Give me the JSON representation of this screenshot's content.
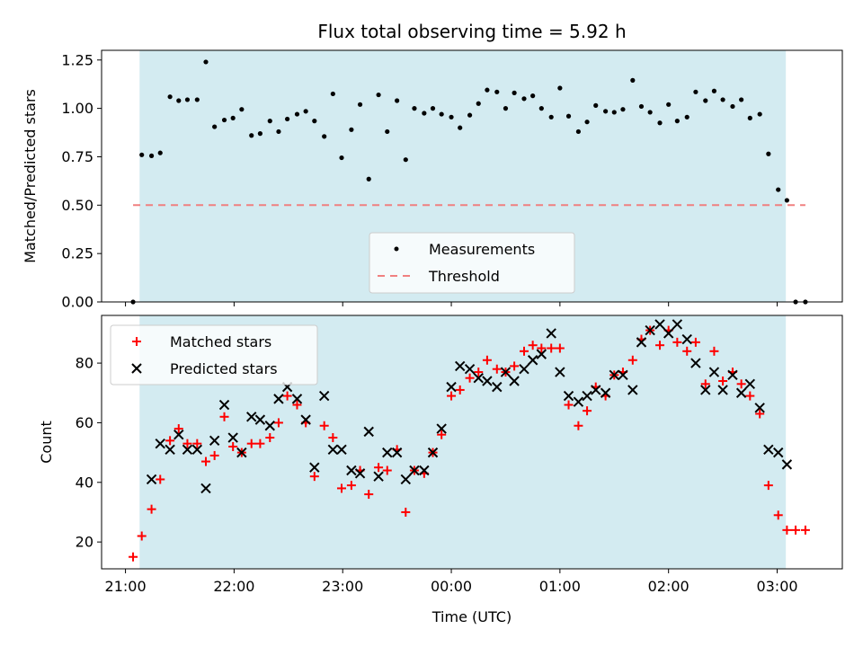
{
  "chart_data": [
    {
      "type": "scatter",
      "title": "Flux total observing time = 5.92 h",
      "ylabel": "Matched/Predicted stars",
      "xlabel": "",
      "ylim": [
        0,
        1.3
      ],
      "yticks": [
        "0.00",
        "0.25",
        "0.50",
        "0.75",
        "1.00",
        "1.25"
      ],
      "xlim": [
        20.78,
        27.6
      ],
      "observing_window": [
        21.13,
        27.08
      ],
      "legend_position": "lower-center",
      "threshold": {
        "name": "Threshold",
        "value": 0.5,
        "x_range": [
          21.07,
          27.26
        ],
        "color": "#f08080",
        "style": "dashed"
      },
      "series": [
        {
          "name": "Measurements",
          "color": "#000000",
          "x": [
            21.07,
            21.15,
            21.24,
            21.32,
            21.41,
            21.49,
            21.57,
            21.66,
            21.74,
            21.82,
            21.91,
            21.99,
            22.07,
            22.16,
            22.24,
            22.33,
            22.41,
            22.49,
            22.58,
            22.66,
            22.74,
            22.83,
            22.91,
            22.99,
            23.08,
            23.16,
            23.24,
            23.33,
            23.41,
            23.5,
            23.58,
            23.66,
            23.75,
            23.83,
            23.91,
            24.0,
            24.08,
            24.17,
            24.25,
            24.33,
            24.42,
            24.5,
            24.58,
            24.67,
            24.75,
            24.83,
            24.92,
            25.0,
            25.08,
            25.17,
            25.25,
            25.33,
            25.42,
            25.5,
            25.58,
            25.67,
            25.75,
            25.83,
            25.92,
            26.0,
            26.08,
            26.17,
            26.25,
            26.34,
            26.42,
            26.5,
            26.59,
            26.67,
            26.75,
            26.84,
            26.92,
            27.01,
            27.09,
            27.17,
            27.26
          ],
          "y": [
            0.0,
            0.76,
            0.755,
            0.77,
            1.06,
            1.04,
            1.045,
            1.045,
            1.24,
            0.905,
            0.94,
            0.95,
            0.995,
            0.86,
            0.87,
            0.935,
            0.88,
            0.945,
            0.97,
            0.985,
            0.935,
            0.855,
            1.075,
            0.745,
            0.89,
            1.02,
            0.635,
            1.07,
            0.88,
            1.04,
            0.735,
            1.0,
            0.975,
            1.0,
            0.97,
            0.955,
            0.9,
            0.965,
            1.025,
            1.095,
            1.085,
            1.0,
            1.08,
            1.05,
            1.065,
            1.0,
            0.955,
            1.105,
            0.96,
            0.88,
            0.93,
            1.015,
            0.985,
            0.98,
            0.995,
            1.145,
            1.01,
            0.98,
            0.925,
            1.02,
            0.935,
            0.955,
            1.085,
            1.04,
            1.09,
            1.045,
            1.01,
            1.045,
            0.95,
            0.97,
            0.765,
            0.58,
            0.525,
            0.0,
            0.0
          ]
        }
      ]
    },
    {
      "type": "scatter",
      "title": "",
      "ylabel": "Count",
      "xlabel": "Time (UTC)",
      "ylim": [
        11,
        96
      ],
      "yticks": [
        "20",
        "40",
        "60",
        "80"
      ],
      "xlim": [
        20.78,
        27.6
      ],
      "xticks": [
        {
          "value": 21,
          "label": "21:00"
        },
        {
          "value": 22,
          "label": "22:00"
        },
        {
          "value": 23,
          "label": "23:00"
        },
        {
          "value": 24,
          "label": "00:00"
        },
        {
          "value": 25,
          "label": "01:00"
        },
        {
          "value": 26,
          "label": "02:00"
        },
        {
          "value": 27,
          "label": "03:00"
        }
      ],
      "observing_window": [
        21.13,
        27.08
      ],
      "legend_position": "upper-left",
      "series": [
        {
          "name": "Matched stars",
          "color": "#ff0000",
          "marker": "plus",
          "x": [
            21.07,
            21.15,
            21.24,
            21.32,
            21.41,
            21.49,
            21.57,
            21.66,
            21.74,
            21.82,
            21.91,
            21.99,
            22.07,
            22.16,
            22.24,
            22.33,
            22.41,
            22.49,
            22.58,
            22.66,
            22.74,
            22.83,
            22.91,
            22.99,
            23.08,
            23.16,
            23.24,
            23.33,
            23.41,
            23.5,
            23.58,
            23.66,
            23.75,
            23.83,
            23.91,
            24.0,
            24.08,
            24.17,
            24.25,
            24.33,
            24.42,
            24.5,
            24.58,
            24.67,
            24.75,
            24.83,
            24.92,
            25.0,
            25.08,
            25.17,
            25.25,
            25.33,
            25.42,
            25.5,
            25.58,
            25.67,
            25.75,
            25.83,
            25.92,
            26.0,
            26.08,
            26.17,
            26.25,
            26.34,
            26.42,
            26.5,
            26.59,
            26.67,
            26.75,
            26.84,
            26.92,
            27.01,
            27.09,
            27.17,
            27.26
          ],
          "y": [
            15,
            22,
            31,
            41,
            54,
            58,
            53,
            53,
            47,
            49,
            62,
            52,
            50,
            53,
            53,
            55,
            60,
            69,
            66,
            60,
            42,
            59,
            55,
            38,
            39,
            44,
            36,
            45,
            44,
            51,
            30,
            44,
            43,
            50,
            56,
            69,
            71,
            75,
            77,
            81,
            78,
            77,
            79,
            84,
            86,
            85,
            85,
            85,
            66,
            59,
            64,
            72,
            69,
            76,
            77,
            81,
            88,
            91,
            86,
            91,
            87,
            84,
            87,
            73,
            84,
            74,
            77,
            73,
            69,
            63,
            39,
            29,
            24,
            24,
            24
          ]
        },
        {
          "name": "Predicted stars",
          "color": "#000000",
          "marker": "x",
          "x": [
            21.24,
            21.32,
            21.41,
            21.49,
            21.57,
            21.66,
            21.74,
            21.82,
            21.91,
            21.99,
            22.07,
            22.16,
            22.24,
            22.33,
            22.41,
            22.49,
            22.58,
            22.66,
            22.74,
            22.83,
            22.91,
            22.99,
            23.08,
            23.16,
            23.24,
            23.33,
            23.41,
            23.5,
            23.58,
            23.66,
            23.75,
            23.83,
            23.91,
            24.0,
            24.08,
            24.17,
            24.25,
            24.33,
            24.42,
            24.5,
            24.58,
            24.67,
            24.75,
            24.83,
            24.92,
            25.0,
            25.08,
            25.17,
            25.25,
            25.33,
            25.42,
            25.5,
            25.58,
            25.67,
            25.75,
            25.83,
            25.92,
            26.0,
            26.08,
            26.17,
            26.25,
            26.34,
            26.42,
            26.5,
            26.59,
            26.67,
            26.75,
            26.84,
            26.92,
            27.01,
            27.09
          ],
          "y": [
            41,
            53,
            51,
            56,
            51,
            51,
            38,
            54,
            66,
            55,
            50,
            62,
            61,
            59,
            68,
            72,
            68,
            61,
            45,
            69,
            51,
            51,
            44,
            43,
            57,
            42,
            50,
            50,
            41,
            44,
            44,
            50,
            58,
            72,
            79,
            78,
            75,
            74,
            72,
            77,
            74,
            78,
            81,
            83,
            90,
            77,
            69,
            67,
            69,
            71,
            70,
            76,
            76,
            71,
            87,
            91,
            93,
            90,
            93,
            88,
            80,
            71,
            77,
            71,
            76,
            70,
            73,
            65,
            51,
            50,
            46
          ]
        }
      ]
    }
  ]
}
